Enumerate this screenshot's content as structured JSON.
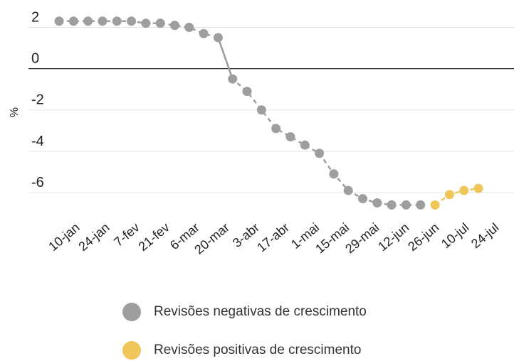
{
  "chart_data": {
    "type": "line",
    "title": "",
    "xlabel": "",
    "ylabel": "%",
    "ylim": [
      -7,
      2.5
    ],
    "yticks": [
      2,
      0,
      -2,
      -4,
      -6
    ],
    "grid": true,
    "legend_position": "bottom",
    "tick_labels": [
      "10-jan",
      "24-jan",
      "7-fev",
      "21-fev",
      "6-mar",
      "20-mar",
      "3-abr",
      "17-abr",
      "1-mai",
      "15-mai",
      "29-mai",
      "12-jun",
      "26-jun",
      "10-jul",
      "24-jul"
    ],
    "series": [
      {
        "name": "Revisões negativas de crescimento",
        "color": "#9e9e9e",
        "values": [
          2.3,
          2.3,
          2.3,
          2.3,
          2.3,
          2.3,
          2.2,
          2.2,
          2.1,
          2.0,
          1.7,
          1.5,
          -0.5,
          -1.1,
          -2.0,
          -2.9,
          -3.3,
          -3.7,
          -4.1,
          -5.1,
          -5.9,
          -6.3,
          -6.5,
          -6.6,
          -6.6,
          -6.6
        ],
        "x_index": [
          0,
          1,
          2,
          3,
          4,
          5,
          6,
          7,
          8,
          9,
          10,
          11,
          12,
          13,
          14,
          15,
          16,
          17,
          18,
          19,
          20,
          21,
          22,
          23,
          24,
          25
        ]
      },
      {
        "name": "Revisões positivas de crescimento",
        "color": "#f0c65a",
        "values": [
          -6.6,
          -6.1,
          -5.9,
          -5.8
        ],
        "x_index": [
          26,
          27,
          28,
          29
        ]
      }
    ]
  },
  "legend": {
    "negative_label": "Revisões negativas de crescimento",
    "positive_label": "Revisões positivas de crescimento",
    "negative_color": "#9e9e9e",
    "positive_color": "#f0c65a"
  }
}
